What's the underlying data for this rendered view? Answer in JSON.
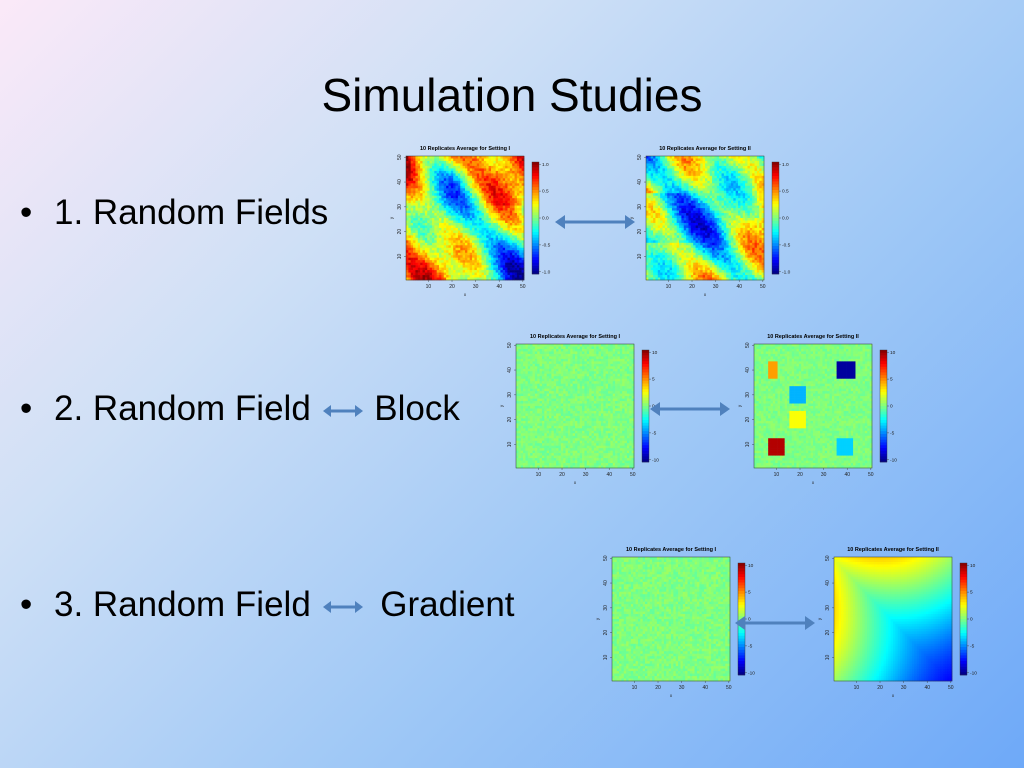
{
  "slide": {
    "title": "Simulation Studies"
  },
  "bullets": [
    {
      "marker": "•",
      "text": "1. Random Fields"
    },
    {
      "marker": "•",
      "text": "2. Random Field",
      "suffix": "Block"
    },
    {
      "marker": "•",
      "text": "3. Random Field",
      "suffix": "Gradient"
    }
  ],
  "rows": [
    {
      "arrow_color": "#4f81bd",
      "plots": [
        {
          "title": "10 Replicates Average for Setting I",
          "pattern": "random-a",
          "xlabel": "x",
          "ylabel": "y",
          "xticks": [
            "10",
            "20",
            "30",
            "40",
            "50"
          ],
          "yticks": [
            "10",
            "20",
            "30",
            "40",
            "50"
          ],
          "cticks": [
            "-1.0",
            "-0.5",
            "0.0",
            "0.5",
            "1.0"
          ],
          "crange": [
            -1.0,
            1.0
          ]
        },
        {
          "title": "10 Replicates Average for Setting II",
          "pattern": "random-b",
          "xlabel": "x",
          "ylabel": "y",
          "xticks": [
            "10",
            "20",
            "30",
            "40",
            "50"
          ],
          "yticks": [
            "10",
            "20",
            "30",
            "40",
            "50"
          ],
          "cticks": [
            "-1.0",
            "-0.5",
            "0.0",
            "0.5",
            "1.0"
          ],
          "crange": [
            -1.0,
            1.0
          ]
        }
      ]
    },
    {
      "arrow_color": "#4f81bd",
      "plots": [
        {
          "title": "10 Replicates Average for Setting I",
          "pattern": "flat",
          "xlabel": "x",
          "ylabel": "y",
          "xticks": [
            "10",
            "20",
            "30",
            "40",
            "50"
          ],
          "yticks": [
            "10",
            "20",
            "30",
            "40",
            "50"
          ],
          "cticks": [
            "-10",
            "-5",
            "0",
            "5",
            "10"
          ],
          "crange": [
            -10,
            10
          ]
        },
        {
          "title": "10 Replicates Average for Setting II",
          "pattern": "blocks",
          "xlabel": "x",
          "ylabel": "y",
          "xticks": [
            "10",
            "20",
            "30",
            "40",
            "50"
          ],
          "yticks": [
            "10",
            "20",
            "30",
            "40",
            "50"
          ],
          "cticks": [
            "-10",
            "-5",
            "0",
            "5",
            "10"
          ],
          "crange": [
            -10,
            10
          ]
        }
      ]
    },
    {
      "arrow_color": "#4f81bd",
      "plots": [
        {
          "title": "10 Replicates Average for Setting I",
          "pattern": "flat",
          "xlabel": "x",
          "ylabel": "y",
          "xticks": [
            "10",
            "20",
            "30",
            "40",
            "50"
          ],
          "yticks": [
            "10",
            "20",
            "30",
            "40",
            "50"
          ],
          "cticks": [
            "-10",
            "-5",
            "0",
            "5",
            "10"
          ],
          "crange": [
            -10,
            10
          ]
        },
        {
          "title": "10 Replicates Average for Setting II",
          "pattern": "gradient",
          "xlabel": "x",
          "ylabel": "y",
          "xticks": [
            "10",
            "20",
            "30",
            "40",
            "50"
          ],
          "yticks": [
            "10",
            "20",
            "30",
            "40",
            "50"
          ],
          "cticks": [
            "-10",
            "-5",
            "0",
            "5",
            "10"
          ],
          "crange": [
            -10,
            10
          ]
        }
      ]
    }
  ]
}
